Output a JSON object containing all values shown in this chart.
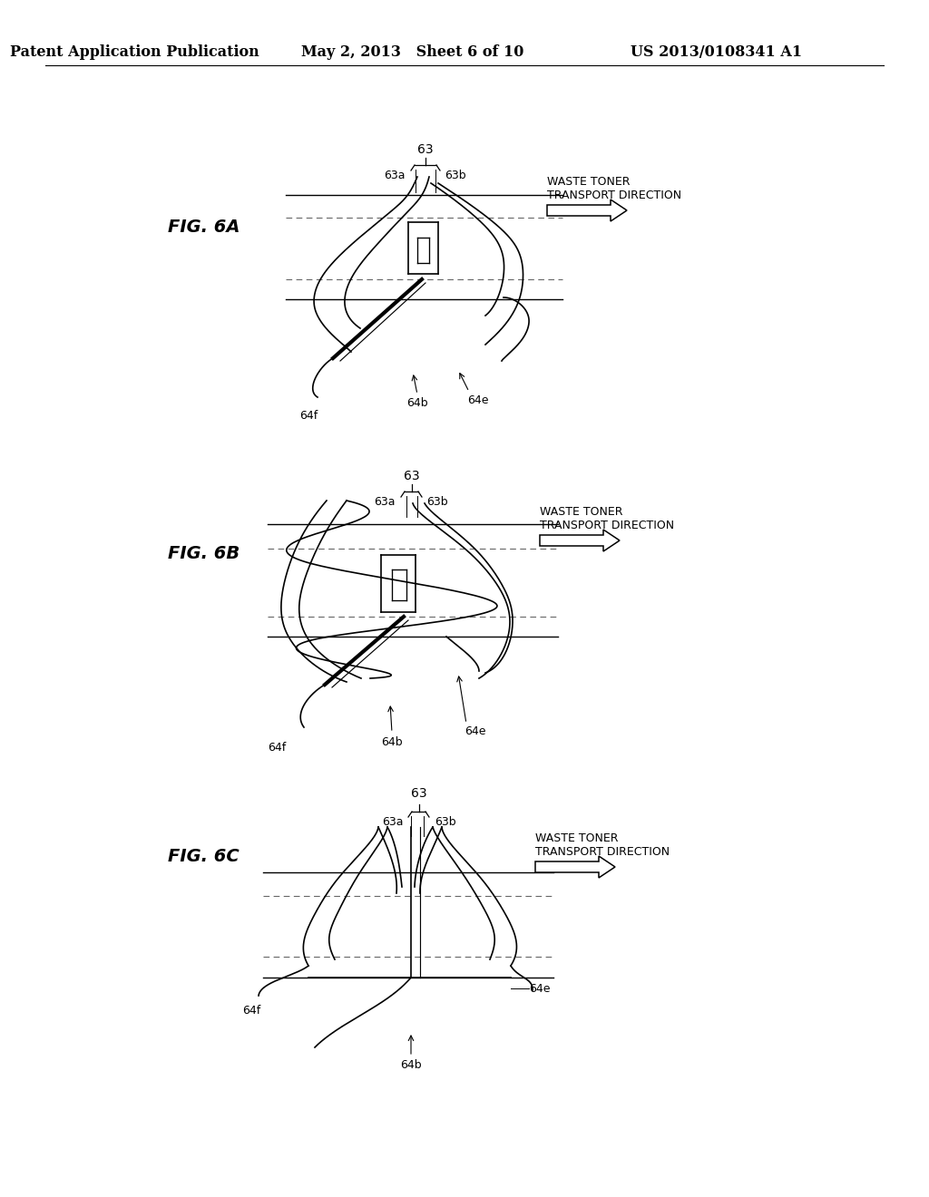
{
  "background_color": "#ffffff",
  "header_left": "Patent Application Publication",
  "header_center": "May 2, 2013   Sheet 6 of 10",
  "header_right": "US 2013/0108341 A1",
  "header_fontsize": 11.5,
  "fig_label_fontsize": 14,
  "annotation_fontsize": 10
}
